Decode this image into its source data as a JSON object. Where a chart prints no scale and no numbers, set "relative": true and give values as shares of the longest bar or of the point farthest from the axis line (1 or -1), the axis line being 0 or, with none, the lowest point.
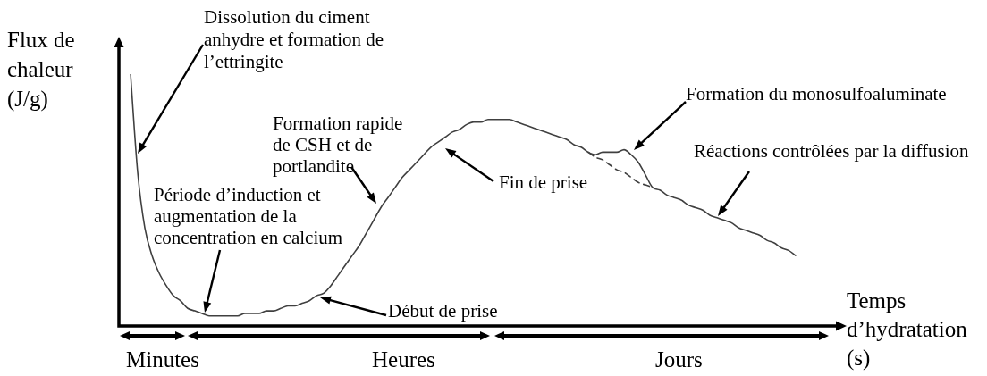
{
  "chart_data": {
    "type": "line",
    "relative": true,
    "tick_labels": false,
    "xlabel": "Temps d’hydratation (s)",
    "ylabel": "Flux de chaleur (J/g)",
    "categories": [
      null,
      null,
      null,
      null,
      null,
      null,
      null,
      null,
      null,
      null,
      null,
      null,
      null,
      null,
      null,
      null,
      null,
      null,
      null,
      null,
      null,
      null,
      null,
      null,
      null,
      null,
      null,
      null,
      null,
      null,
      null,
      null,
      null,
      null,
      null,
      null,
      null,
      null,
      null,
      null,
      null,
      null,
      null,
      null,
      null,
      null,
      null,
      null,
      null,
      null,
      null,
      null,
      null,
      null,
      null,
      null,
      null,
      null,
      null,
      null,
      null,
      null,
      null,
      null,
      null,
      null,
      null,
      null,
      null,
      null,
      null,
      null,
      null,
      null,
      null,
      null,
      null,
      null,
      null,
      null,
      null,
      null,
      null,
      null,
      null,
      null,
      null,
      null,
      null,
      null,
      null,
      null,
      null,
      null
    ],
    "series": [
      {
        "color": "#404040",
        "values": [
          1.0,
          0.61,
          0.39,
          0.28,
          0.21,
          0.16,
          0.12,
          0.1,
          0.07,
          0.06,
          0.05,
          0.04,
          0.04,
          0.04,
          0.04,
          0.04,
          0.05,
          0.05,
          0.05,
          0.06,
          0.06,
          0.07,
          0.08,
          0.08,
          0.09,
          0.1,
          0.12,
          0.13,
          0.16,
          0.2,
          0.24,
          0.28,
          0.32,
          0.37,
          0.42,
          0.47,
          0.51,
          0.55,
          0.59,
          0.62,
          0.65,
          0.68,
          0.71,
          0.73,
          0.75,
          0.77,
          0.78,
          0.8,
          0.81,
          0.81,
          0.82,
          0.82,
          0.82,
          0.82,
          0.81,
          0.8,
          0.79,
          0.78,
          0.77,
          0.76,
          0.75,
          0.74,
          0.72,
          0.71,
          0.69,
          0.68,
          0.69,
          0.69,
          0.69,
          0.7,
          0.68,
          0.65,
          0.6,
          0.55,
          0.54,
          0.52,
          0.51,
          0.5,
          0.48,
          0.47,
          0.46,
          0.44,
          0.43,
          0.42,
          0.41,
          0.39,
          0.38,
          0.37,
          0.36,
          0.34,
          0.33,
          0.31,
          0.3,
          0.28
        ]
      },
      {
        "color": "#404040",
        "line_style": "dashed",
        "values": [
          null,
          null,
          null,
          null,
          null,
          null,
          null,
          null,
          null,
          null,
          null,
          null,
          null,
          null,
          null,
          null,
          null,
          null,
          null,
          null,
          null,
          null,
          null,
          null,
          null,
          null,
          null,
          null,
          null,
          null,
          null,
          null,
          null,
          null,
          null,
          null,
          null,
          null,
          null,
          null,
          null,
          null,
          null,
          null,
          null,
          null,
          null,
          null,
          null,
          null,
          null,
          null,
          null,
          null,
          null,
          null,
          null,
          null,
          null,
          null,
          null,
          null,
          null,
          null,
          0.69,
          0.67,
          0.66,
          0.64,
          0.62,
          0.61,
          0.59,
          0.57,
          0.56,
          0.55,
          null,
          null,
          null,
          null,
          null,
          null,
          null,
          null,
          null,
          null,
          null,
          null,
          null,
          null,
          null,
          null,
          null,
          null,
          null,
          null
        ]
      }
    ],
    "annotations": [
      "Dissolution du ciment anhydre et formation de l’ettringite",
      "Formation rapide de CSH et de portlandite",
      "Période d’induction et augmentation de la concentration en calcium",
      "Fin de prise",
      "Formation du monosulfoaluminate",
      "Réactions contrôlées par la diffusion",
      "Début de prise",
      "Minutes",
      "Heures",
      "Jours"
    ]
  }
}
